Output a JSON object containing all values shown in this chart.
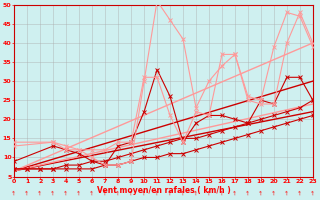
{
  "xlabel": "Vent moyen/en rafales ( km/h )",
  "xlim": [
    0,
    23
  ],
  "ylim": [
    5,
    50
  ],
  "yticks": [
    5,
    10,
    15,
    20,
    25,
    30,
    35,
    40,
    45,
    50
  ],
  "xticks": [
    0,
    1,
    2,
    3,
    4,
    5,
    6,
    7,
    8,
    9,
    10,
    11,
    12,
    13,
    14,
    15,
    16,
    17,
    18,
    19,
    20,
    21,
    22,
    23
  ],
  "bg_color": "#cff0f0",
  "grid_color": "#aaaaaa",
  "series": [
    {
      "x": [
        0,
        23
      ],
      "y": [
        6.5,
        22
      ],
      "color": "#cc0000",
      "lw": 1.0,
      "marker": null
    },
    {
      "x": [
        0,
        23
      ],
      "y": [
        6.5,
        30
      ],
      "color": "#cc0000",
      "lw": 1.0,
      "marker": null
    },
    {
      "x": [
        0,
        23
      ],
      "y": [
        6.5,
        24
      ],
      "color": "#ff9999",
      "lw": 1.0,
      "marker": null
    },
    {
      "x": [
        0,
        23
      ],
      "y": [
        6.5,
        40
      ],
      "color": "#ff9999",
      "lw": 1.0,
      "marker": null
    },
    {
      "x": [
        0,
        1,
        2,
        3,
        4,
        5,
        6,
        7,
        8,
        9,
        10,
        11,
        12,
        13,
        14,
        15,
        16,
        17,
        18,
        19,
        20,
        21,
        22,
        23
      ],
      "y": [
        7,
        7,
        7,
        7,
        7,
        7,
        7,
        8,
        8,
        9,
        10,
        10,
        11,
        11,
        12,
        13,
        14,
        15,
        16,
        17,
        18,
        19,
        20,
        21
      ],
      "color": "#cc0000",
      "lw": 0.8,
      "marker": "x",
      "ms": 2.5
    },
    {
      "x": [
        0,
        1,
        2,
        3,
        4,
        5,
        6,
        7,
        8,
        9,
        10,
        11,
        12,
        13,
        14,
        15,
        16,
        17,
        18,
        19,
        20,
        21,
        22,
        23
      ],
      "y": [
        7,
        7,
        7,
        7,
        8,
        8,
        9,
        9,
        10,
        11,
        12,
        13,
        14,
        15,
        15,
        16,
        17,
        18,
        19,
        20,
        21,
        22,
        23,
        25
      ],
      "color": "#cc0000",
      "lw": 0.8,
      "marker": "x",
      "ms": 2.5
    },
    {
      "x": [
        0,
        3,
        4,
        5,
        6,
        7,
        8,
        9,
        10,
        11,
        12,
        13,
        14,
        15,
        16,
        17,
        18,
        19,
        20,
        21,
        22,
        23
      ],
      "y": [
        9,
        13,
        12,
        11,
        9,
        8,
        13,
        14,
        22,
        33,
        26,
        14,
        19,
        21,
        21,
        20,
        19,
        25,
        24,
        31,
        31,
        25
      ],
      "color": "#cc0000",
      "lw": 0.8,
      "marker": "x",
      "ms": 2.5
    },
    {
      "x": [
        0,
        3,
        4,
        5,
        6,
        7,
        8,
        9,
        10,
        11,
        12,
        13,
        14,
        15,
        16,
        17,
        18,
        19,
        20,
        21,
        22,
        23
      ],
      "y": [
        14,
        14,
        12,
        12,
        10,
        8,
        8,
        9,
        30,
        51,
        46,
        41,
        23,
        30,
        34,
        37,
        26,
        25,
        39,
        48,
        47,
        39
      ],
      "color": "#ff9999",
      "lw": 0.8,
      "marker": "x",
      "ms": 2.5
    },
    {
      "x": [
        0,
        3,
        4,
        5,
        6,
        7,
        8,
        9,
        10,
        11,
        12,
        13,
        14,
        15,
        16,
        17,
        18,
        19,
        20,
        21,
        22,
        23
      ],
      "y": [
        13,
        14,
        13,
        12,
        12,
        12,
        14,
        14,
        31,
        31,
        21,
        14,
        22,
        21,
        37,
        37,
        25,
        24,
        24,
        40,
        48,
        40
      ],
      "color": "#ff9999",
      "lw": 0.8,
      "marker": "x",
      "ms": 2.5
    }
  ]
}
